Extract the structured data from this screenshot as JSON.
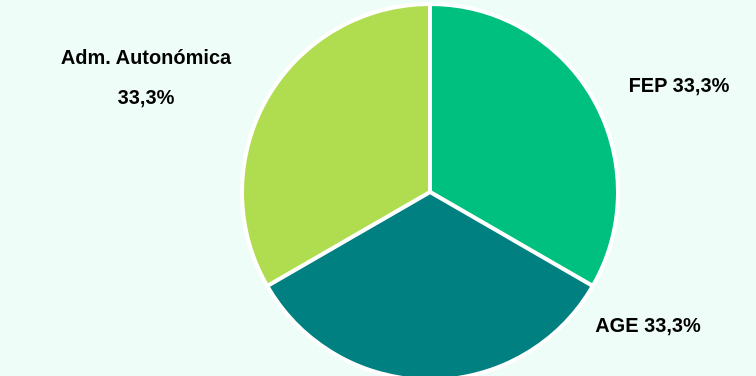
{
  "chart_data": {
    "type": "pie",
    "title": "",
    "slices": [
      {
        "name": "FEP",
        "value": 33.3,
        "label": "FEP 33,3%",
        "color": "#00c080"
      },
      {
        "name": "AGE",
        "value": 33.3,
        "label": "AGE 33,3%",
        "color": "#008080"
      },
      {
        "name": "Adm. Autonómica",
        "value": 33.3,
        "label_lines": [
          "Adm. Autonómica",
          "33,3%"
        ],
        "color": "#b0dc50"
      }
    ],
    "slice_edge_color": "#ffffff",
    "background": "#effdf9"
  }
}
